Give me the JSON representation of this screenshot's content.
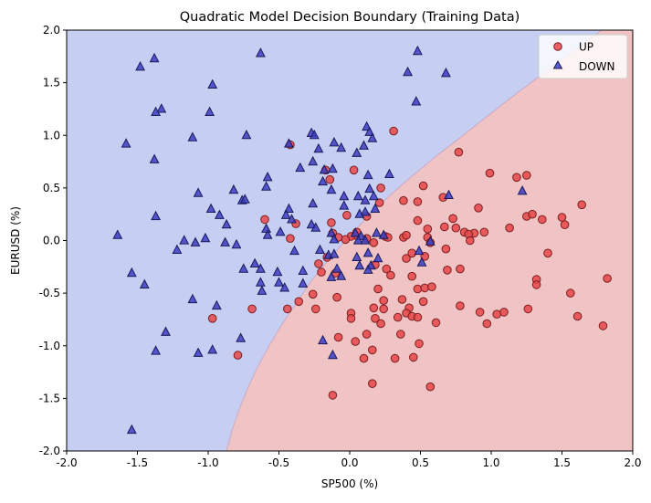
{
  "chart_data": {
    "type": "scatter",
    "title": "Quadratic Model Decision Boundary (Training Data)",
    "xlabel": "SP500 (%)",
    "ylabel": "EURUSD (%)",
    "xlim": [
      -2.0,
      2.0
    ],
    "ylim": [
      -2.0,
      2.0
    ],
    "x_ticks": [
      "-2.0",
      "-1.5",
      "-1.0",
      "-0.5",
      "0.0",
      "0.5",
      "1.0",
      "1.5",
      "2.0"
    ],
    "y_ticks": [
      "-2.0",
      "-1.5",
      "-1.0",
      "-0.5",
      "0.0",
      "0.5",
      "1.0",
      "1.5",
      "2.0"
    ],
    "grid": false,
    "legend_position": "top-right",
    "regions": {
      "down_color": "#c6cff2",
      "up_color": "#f0c4c4",
      "boundary": [
        [
          -0.87,
          -2.0
        ],
        [
          -0.83,
          -1.8
        ],
        [
          -0.78,
          -1.6
        ],
        [
          -0.72,
          -1.4
        ],
        [
          -0.65,
          -1.2
        ],
        [
          -0.57,
          -1.0
        ],
        [
          -0.48,
          -0.8
        ],
        [
          -0.38,
          -0.6
        ],
        [
          -0.28,
          -0.4
        ],
        [
          -0.16,
          -0.2
        ],
        [
          -0.03,
          0.0
        ],
        [
          0.11,
          0.2
        ],
        [
          0.26,
          0.4
        ],
        [
          0.43,
          0.6
        ],
        [
          0.61,
          0.8
        ],
        [
          0.8,
          1.0
        ],
        [
          0.99,
          1.2
        ],
        [
          1.18,
          1.4
        ],
        [
          1.38,
          1.6
        ],
        [
          1.58,
          1.8
        ],
        [
          1.78,
          2.0
        ]
      ]
    },
    "series": [
      {
        "name": "UP",
        "marker": "circle",
        "color": "#e8474a",
        "points": [
          [
            -0.42,
            0.91
          ],
          [
            0.31,
            1.04
          ],
          [
            0.52,
            0.52
          ],
          [
            0.77,
            0.84
          ],
          [
            0.99,
            0.64
          ],
          [
            1.18,
            0.6
          ],
          [
            1.25,
            0.62
          ],
          [
            1.64,
            0.34
          ],
          [
            0.22,
            0.5
          ],
          [
            0.03,
            0.67
          ],
          [
            -0.17,
            0.67
          ],
          [
            -0.14,
            0.58
          ],
          [
            -0.6,
            0.2
          ],
          [
            -0.38,
            0.16
          ],
          [
            -0.13,
            0.17
          ],
          [
            -0.02,
            0.24
          ],
          [
            0.21,
            0.36
          ],
          [
            0.12,
            0.23
          ],
          [
            0.38,
            0.38
          ],
          [
            0.48,
            0.37
          ],
          [
            0.66,
            0.41
          ],
          [
            0.73,
            0.21
          ],
          [
            0.88,
            0.07
          ],
          [
            0.91,
            0.31
          ],
          [
            1.13,
            0.12
          ],
          [
            1.25,
            0.23
          ],
          [
            1.29,
            0.25
          ],
          [
            1.36,
            0.2
          ],
          [
            1.5,
            0.22
          ],
          [
            1.52,
            0.15
          ],
          [
            0.48,
            0.19
          ],
          [
            0.55,
            0.11
          ],
          [
            0.67,
            0.13
          ],
          [
            0.75,
            0.12
          ],
          [
            0.81,
            0.08
          ],
          [
            0.84,
            0.06
          ],
          [
            0.85,
            0.0
          ],
          [
            0.95,
            0.08
          ],
          [
            0.55,
            0.03
          ],
          [
            0.57,
            -0.02
          ],
          [
            0.38,
            0.03
          ],
          [
            0.25,
            0.04
          ],
          [
            0.27,
            0.03
          ],
          [
            0.4,
            0.05
          ],
          [
            0.04,
            0.05
          ],
          [
            0.01,
            0.04
          ],
          [
            0.05,
            0.08
          ],
          [
            0.12,
            0.02
          ],
          [
            0.17,
            -0.02
          ],
          [
            -0.12,
            0.07
          ],
          [
            -0.08,
            0.03
          ],
          [
            -0.03,
            0.01
          ],
          [
            -0.16,
            -0.16
          ],
          [
            -0.22,
            -0.22
          ],
          [
            -0.2,
            -0.3
          ],
          [
            -0.1,
            -0.31
          ],
          [
            0.18,
            -0.23
          ],
          [
            0.26,
            -0.27
          ],
          [
            0.4,
            -0.17
          ],
          [
            0.44,
            -0.12
          ],
          [
            0.53,
            -0.15
          ],
          [
            0.68,
            -0.08
          ],
          [
            0.69,
            -0.28
          ],
          [
            0.78,
            -0.27
          ],
          [
            0.44,
            -0.34
          ],
          [
            0.48,
            -0.46
          ],
          [
            0.53,
            -0.45
          ],
          [
            0.58,
            -0.44
          ],
          [
            0.29,
            -0.33
          ],
          [
            0.2,
            -0.46
          ],
          [
            0.24,
            -0.57
          ],
          [
            0.37,
            -0.56
          ],
          [
            0.52,
            -0.58
          ],
          [
            0.42,
            -0.64
          ],
          [
            0.17,
            -0.64
          ],
          [
            0.24,
            -0.65
          ],
          [
            0.34,
            -0.73
          ],
          [
            0.22,
            -0.79
          ],
          [
            0.18,
            -0.74
          ],
          [
            0.4,
            -0.69
          ],
          [
            0.44,
            -0.72
          ],
          [
            0.48,
            -0.73
          ],
          [
            0.01,
            -0.69
          ],
          [
            0.01,
            -0.74
          ],
          [
            -0.09,
            -0.54
          ],
          [
            -0.26,
            -0.51
          ],
          [
            -0.24,
            -0.65
          ],
          [
            -0.36,
            -0.58
          ],
          [
            -0.44,
            -0.65
          ],
          [
            -0.69,
            -0.65
          ],
          [
            -0.97,
            -0.74
          ],
          [
            -0.79,
            -1.09
          ],
          [
            -0.08,
            -0.92
          ],
          [
            0.12,
            -0.89
          ],
          [
            0.04,
            -0.96
          ],
          [
            0.16,
            -1.04
          ],
          [
            0.1,
            -1.12
          ],
          [
            0.32,
            -1.12
          ],
          [
            0.45,
            -1.11
          ],
          [
            0.49,
            -0.98
          ],
          [
            0.61,
            -0.78
          ],
          [
            0.36,
            -0.89
          ],
          [
            0.92,
            -0.68
          ],
          [
            0.97,
            -0.79
          ],
          [
            1.04,
            -0.7
          ],
          [
            1.09,
            -0.68
          ],
          [
            1.26,
            -0.65
          ],
          [
            1.32,
            -0.37
          ],
          [
            1.32,
            -0.42
          ],
          [
            1.4,
            -0.12
          ],
          [
            1.56,
            -0.5
          ],
          [
            1.61,
            -0.72
          ],
          [
            1.79,
            -0.81
          ],
          [
            1.82,
            -0.36
          ],
          [
            0.57,
            -1.39
          ],
          [
            0.16,
            -1.36
          ],
          [
            -0.12,
            -1.47
          ],
          [
            0.78,
            -0.62
          ],
          [
            -0.42,
            0.02
          ]
        ]
      },
      {
        "name": "DOWN",
        "marker": "triangle",
        "color": "#3c3ec4",
        "points": [
          [
            -1.48,
            1.65
          ],
          [
            -1.38,
            1.73
          ],
          [
            -0.63,
            1.78
          ],
          [
            -0.97,
            1.48
          ],
          [
            -1.33,
            1.25
          ],
          [
            -1.37,
            1.22
          ],
          [
            -0.99,
            1.22
          ],
          [
            -1.11,
            0.98
          ],
          [
            -1.58,
            0.92
          ],
          [
            -1.38,
            0.77
          ],
          [
            -0.73,
            1.0
          ],
          [
            -0.43,
            0.92
          ],
          [
            -0.27,
            1.02
          ],
          [
            -0.25,
            1.0
          ],
          [
            -0.11,
            0.93
          ],
          [
            -0.22,
            0.87
          ],
          [
            -0.06,
            0.88
          ],
          [
            0.1,
            0.9
          ],
          [
            0.12,
            1.08
          ],
          [
            0.14,
            1.03
          ],
          [
            0.16,
            0.97
          ],
          [
            0.05,
            0.83
          ],
          [
            -0.26,
            0.75
          ],
          [
            -0.35,
            0.69
          ],
          [
            -0.18,
            0.67
          ],
          [
            -0.12,
            0.68
          ],
          [
            0.13,
            0.62
          ],
          [
            0.28,
            0.63
          ],
          [
            0.48,
            1.8
          ],
          [
            0.41,
            1.6
          ],
          [
            0.47,
            1.32
          ],
          [
            0.68,
            1.59
          ],
          [
            -0.82,
            0.48
          ],
          [
            -0.58,
            0.6
          ],
          [
            -0.59,
            0.51
          ],
          [
            -0.19,
            0.56
          ],
          [
            -0.13,
            0.48
          ],
          [
            -0.04,
            0.42
          ],
          [
            0.06,
            0.42
          ],
          [
            0.14,
            0.49
          ],
          [
            0.17,
            0.42
          ],
          [
            0.11,
            0.38
          ],
          [
            -1.07,
            0.45
          ],
          [
            -0.76,
            0.38
          ],
          [
            -0.74,
            0.39
          ],
          [
            -0.98,
            0.3
          ],
          [
            -0.43,
            0.3
          ],
          [
            -0.45,
            0.24
          ],
          [
            -0.41,
            0.2
          ],
          [
            -0.26,
            0.35
          ],
          [
            -0.04,
            0.33
          ],
          [
            0.11,
            0.27
          ],
          [
            0.07,
            0.25
          ],
          [
            0.18,
            0.3
          ],
          [
            -1.37,
            0.23
          ],
          [
            -0.92,
            0.24
          ],
          [
            -0.87,
            0.15
          ],
          [
            -0.59,
            0.11
          ],
          [
            -0.49,
            0.08
          ],
          [
            -0.58,
            0.05
          ],
          [
            -0.27,
            0.15
          ],
          [
            -0.24,
            0.12
          ],
          [
            -0.13,
            0.07
          ],
          [
            -0.11,
            0.01
          ],
          [
            0.04,
            0.07
          ],
          [
            0.08,
            0.04
          ],
          [
            0.19,
            0.07
          ],
          [
            0.24,
            0.05
          ],
          [
            0.06,
            0.0
          ],
          [
            0.11,
            0.0
          ],
          [
            -1.64,
            0.05
          ],
          [
            -1.17,
            0.0
          ],
          [
            -1.09,
            -0.02
          ],
          [
            -1.02,
            0.02
          ],
          [
            -0.88,
            -0.02
          ],
          [
            -0.8,
            -0.04
          ],
          [
            -0.21,
            -0.09
          ],
          [
            -0.15,
            -0.14
          ],
          [
            -0.39,
            -0.1
          ],
          [
            -0.11,
            -0.13
          ],
          [
            0.13,
            -0.12
          ],
          [
            0.2,
            -0.17
          ],
          [
            0.15,
            -0.24
          ],
          [
            0.13,
            -0.28
          ],
          [
            0.07,
            -0.24
          ],
          [
            0.05,
            -0.16
          ],
          [
            -1.22,
            -0.09
          ],
          [
            -0.75,
            -0.27
          ],
          [
            -0.63,
            -0.27
          ],
          [
            -0.67,
            -0.22
          ],
          [
            -0.51,
            -0.3
          ],
          [
            -0.09,
            -0.27
          ],
          [
            -0.06,
            -0.34
          ],
          [
            -1.54,
            -0.31
          ],
          [
            -1.45,
            -0.42
          ],
          [
            -1.11,
            -0.56
          ],
          [
            -0.94,
            -0.62
          ],
          [
            -0.63,
            -0.4
          ],
          [
            -0.62,
            -0.48
          ],
          [
            -0.5,
            -0.4
          ],
          [
            -0.46,
            -0.45
          ],
          [
            -0.33,
            -0.29
          ],
          [
            -0.33,
            -0.41
          ],
          [
            -0.13,
            -0.35
          ],
          [
            0.49,
            -0.1
          ],
          [
            0.51,
            -0.21
          ],
          [
            0.57,
            -0.01
          ],
          [
            0.7,
            0.43
          ],
          [
            1.22,
            0.47
          ],
          [
            -1.3,
            -0.87
          ],
          [
            -1.37,
            -1.05
          ],
          [
            -1.07,
            -1.07
          ],
          [
            -0.77,
            -0.93
          ],
          [
            -0.97,
            -1.04
          ],
          [
            -1.54,
            -1.8
          ],
          [
            -0.19,
            -0.95
          ],
          [
            -0.12,
            -1.09
          ]
        ]
      }
    ]
  }
}
